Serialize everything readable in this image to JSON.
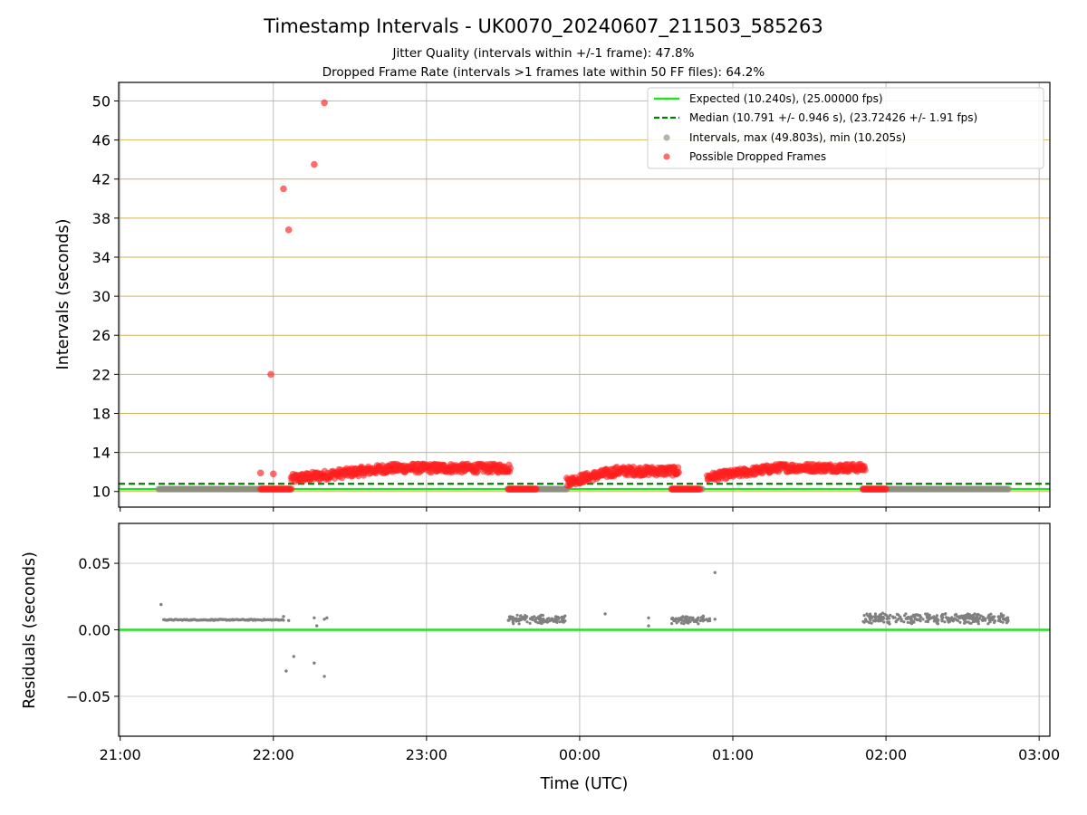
{
  "figure": {
    "title": "Timestamp Intervals - UK0070_20240607_211503_585263",
    "subtitle_1": "Jitter Quality (intervals within +/-1 frame): 47.8%",
    "subtitle_2": "Dropped Frame Rate (intervals >1 frames late within 50 FF files): 64.2%"
  },
  "chart_data": [
    {
      "type": "scatter",
      "panel": "top",
      "ylabel": "Intervals (seconds)",
      "xlim_hours": [
        20.99,
        27.07
      ],
      "ylim": [
        8.4,
        51.9
      ],
      "yticks": [
        10,
        14,
        18,
        22,
        26,
        30,
        34,
        38,
        42,
        46,
        50
      ],
      "grid": "x gray, y goldenrod",
      "legend_position": "top-right",
      "legend": [
        {
          "label": "Expected (10.240s), (25.00000 fps)",
          "style": "solid-line",
          "color": "#22e122"
        },
        {
          "label": "Median (10.791 +/- 0.946 s), (23.72426 +/- 1.91 fps)",
          "style": "dashed-line",
          "color": "#008000"
        },
        {
          "label": "Intervals, max (49.803s), min (10.205s)",
          "style": "marker",
          "color": "#8e8e7e"
        },
        {
          "label": "Possible Dropped Frames",
          "style": "marker",
          "color": "#ff3b3b"
        }
      ],
      "expected_value": 10.24,
      "median_value": 10.791,
      "interval_segments": [
        {
          "start": "21:15",
          "end": "21:55",
          "value": 10.25
        },
        {
          "start": "23:32",
          "end": "23:55",
          "value": 10.25
        },
        {
          "start": "00:36",
          "end": "00:48",
          "value": 10.25
        },
        {
          "start": "01:51",
          "end": "02:48",
          "value": 10.25
        }
      ],
      "dropped_frame_clusters": [
        {
          "start": "21:55",
          "end": "22:07",
          "value": 10.25
        },
        {
          "start": "22:07",
          "end": "23:33",
          "value_range": [
            10.8,
            12.8
          ]
        },
        {
          "start": "23:32",
          "end": "23:43",
          "value": 10.25
        },
        {
          "start": "23:55",
          "end": "00:39",
          "value_range": [
            10.5,
            12.5
          ]
        },
        {
          "start": "00:36",
          "end": "00:47",
          "value": 10.25
        },
        {
          "start": "00:50",
          "end": "01:52",
          "value_range": [
            11.0,
            12.8
          ]
        },
        {
          "start": "01:51",
          "end": "02:00",
          "value": 10.25
        }
      ],
      "dropped_frame_outliers": [
        {
          "time": "21:55",
          "value": 11.9
        },
        {
          "time": "21:59",
          "value": 22.0
        },
        {
          "time": "22:00",
          "value": 11.8
        },
        {
          "time": "22:04",
          "value": 41.0
        },
        {
          "time": "22:06",
          "value": 36.8
        },
        {
          "time": "22:16",
          "value": 43.5
        },
        {
          "time": "22:20",
          "value": 49.8
        }
      ]
    },
    {
      "type": "scatter",
      "panel": "bottom",
      "ylabel": "Residuals (seconds)",
      "xlabel": "Time (UTC)",
      "xticks": [
        "21:00",
        "22:00",
        "23:00",
        "00:00",
        "01:00",
        "02:00",
        "03:00"
      ],
      "ylim": [
        -0.08,
        0.08
      ],
      "yticks": [
        0.05,
        0.0,
        -0.05
      ],
      "ytick_labels": [
        "0.05",
        "0.00",
        "−0.05"
      ],
      "zero_line_color": "#22e122",
      "point_color": "#808080",
      "residual_segments": [
        {
          "start": "21:17",
          "end": "22:04",
          "value": 0.0075
        },
        {
          "start": "23:32",
          "end": "23:55",
          "value_range": [
            0.004,
            0.012
          ]
        },
        {
          "start": "00:36",
          "end": "00:51",
          "value_range": [
            0.004,
            0.011
          ]
        },
        {
          "start": "01:51",
          "end": "02:48",
          "value_range": [
            0.004,
            0.013
          ]
        }
      ],
      "residual_points": [
        {
          "time": "21:16",
          "value": 0.019
        },
        {
          "time": "22:04",
          "value": 0.01
        },
        {
          "time": "22:06",
          "value": 0.007
        },
        {
          "time": "22:16",
          "value": 0.009
        },
        {
          "time": "22:17",
          "value": 0.003
        },
        {
          "time": "22:20",
          "value": 0.008
        },
        {
          "time": "22:21",
          "value": 0.009
        },
        {
          "time": "22:05",
          "value": -0.031
        },
        {
          "time": "22:08",
          "value": -0.02
        },
        {
          "time": "22:16",
          "value": -0.025
        },
        {
          "time": "22:20",
          "value": -0.035
        },
        {
          "time": "00:10",
          "value": 0.012
        },
        {
          "time": "00:27",
          "value": 0.009
        },
        {
          "time": "00:27",
          "value": 0.003
        },
        {
          "time": "00:53",
          "value": 0.043
        },
        {
          "time": "00:53",
          "value": 0.008
        }
      ]
    }
  ]
}
